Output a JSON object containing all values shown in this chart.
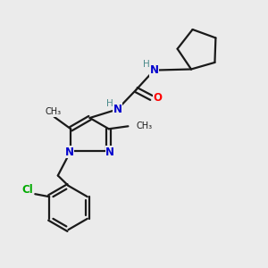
{
  "background_color": "#ebebeb",
  "bond_color": "#1a1a1a",
  "nitrogen_color": "#0000cd",
  "oxygen_color": "#ff0000",
  "chlorine_color": "#00aa00",
  "nh_color": "#4a8a8a",
  "figsize": [
    3.0,
    3.0
  ],
  "dpi": 100,
  "xlim": [
    0,
    10
  ],
  "ylim": [
    0,
    10
  ]
}
